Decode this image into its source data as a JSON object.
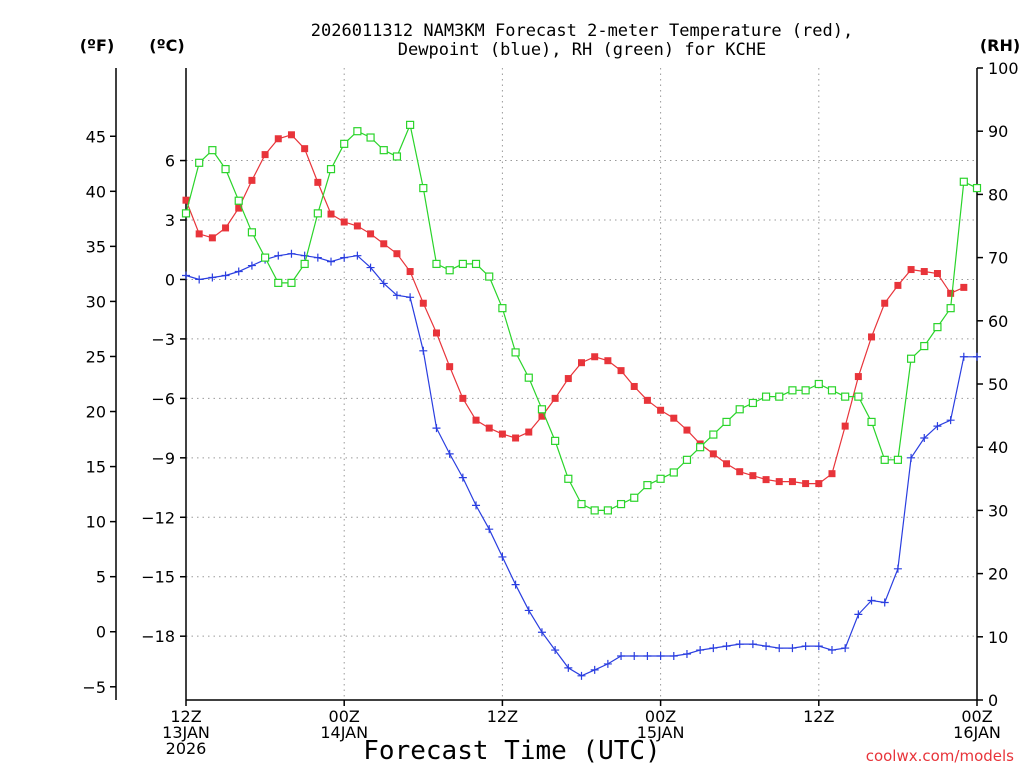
{
  "chart_data": {
    "type": "line",
    "title": [
      "2026011312 NAM3KM Forecast 2-meter Temperature (red),",
      "Dewpoint (blue), RH (green) for KCHE"
    ],
    "xlabel": "Forecast Time (UTC)",
    "credit": "coolwx.com/models",
    "axes": {
      "left_f": {
        "unit_label": "(ºF)",
        "ticks": [
          -5,
          0,
          5,
          10,
          15,
          20,
          25,
          30,
          35,
          40,
          45
        ],
        "range": [
          -6.2,
          51.2
        ]
      },
      "left_c": {
        "unit_label": "(ºC)",
        "ticks": [
          -18,
          -15,
          -12,
          -9,
          -6,
          -3,
          0,
          3,
          6
        ],
        "range": [
          -21.22,
          10.67
        ]
      },
      "right_rh": {
        "unit_label": "(RH)",
        "ticks": [
          0,
          10,
          20,
          30,
          40,
          50,
          60,
          70,
          80,
          90,
          100
        ],
        "range": [
          0,
          100
        ]
      }
    },
    "x_range_hours": [
      0,
      60
    ],
    "x_ticks": [
      {
        "hour": 0,
        "lines": [
          "12Z",
          "13JAN",
          "2026"
        ]
      },
      {
        "hour": 12,
        "lines": [
          "00Z",
          "14JAN"
        ]
      },
      {
        "hour": 24,
        "lines": [
          "12Z"
        ]
      },
      {
        "hour": 36,
        "lines": [
          "00Z",
          "15JAN"
        ]
      },
      {
        "hour": 48,
        "lines": [
          "12Z"
        ]
      },
      {
        "hour": 60,
        "lines": [
          "00Z",
          "16JAN"
        ]
      }
    ],
    "series": [
      {
        "name": "Temperature",
        "axis": "left_c",
        "color": "#e8343a",
        "marker": "filled-square",
        "points": [
          [
            0,
            4.0
          ],
          [
            1,
            2.3
          ],
          [
            2,
            2.1
          ],
          [
            3,
            2.6
          ],
          [
            4,
            3.6
          ],
          [
            5,
            5.0
          ],
          [
            6,
            6.3
          ],
          [
            7,
            7.1
          ],
          [
            8,
            7.3
          ],
          [
            9,
            6.6
          ],
          [
            10,
            4.9
          ],
          [
            11,
            3.3
          ],
          [
            12,
            2.9
          ],
          [
            13,
            2.7
          ],
          [
            14,
            2.3
          ],
          [
            15,
            1.8
          ],
          [
            16,
            1.3
          ],
          [
            17,
            0.4
          ],
          [
            18,
            -1.2
          ],
          [
            19,
            -2.7
          ],
          [
            20,
            -4.4
          ],
          [
            21,
            -6.0
          ],
          [
            22,
            -7.1
          ],
          [
            23,
            -7.5
          ],
          [
            24,
            -7.8
          ],
          [
            25,
            -8.0
          ],
          [
            26,
            -7.7
          ],
          [
            27,
            -6.9
          ],
          [
            28,
            -6.0
          ],
          [
            29,
            -5.0
          ],
          [
            30,
            -4.2
          ],
          [
            31,
            -3.9
          ],
          [
            32,
            -4.1
          ],
          [
            33,
            -4.6
          ],
          [
            34,
            -5.4
          ],
          [
            35,
            -6.1
          ],
          [
            36,
            -6.6
          ],
          [
            37,
            -7.0
          ],
          [
            38,
            -7.6
          ],
          [
            39,
            -8.3
          ],
          [
            40,
            -8.8
          ],
          [
            41,
            -9.3
          ],
          [
            42,
            -9.7
          ],
          [
            43,
            -9.9
          ],
          [
            44,
            -10.1
          ],
          [
            45,
            -10.2
          ],
          [
            46,
            -10.2
          ],
          [
            47,
            -10.3
          ],
          [
            48,
            -10.3
          ],
          [
            49,
            -9.8
          ],
          [
            50,
            -7.4
          ],
          [
            51,
            -4.9
          ],
          [
            52,
            -2.9
          ],
          [
            53,
            -1.2
          ],
          [
            54,
            -0.3
          ],
          [
            55,
            0.5
          ],
          [
            56,
            0.4
          ],
          [
            57,
            0.3
          ],
          [
            58,
            -0.7
          ],
          [
            59,
            -0.4
          ]
        ]
      },
      {
        "name": "Dewpoint",
        "axis": "left_c",
        "color": "#2a3ee0",
        "marker": "plus",
        "points": [
          [
            0,
            0.2
          ],
          [
            1,
            0.0
          ],
          [
            2,
            0.1
          ],
          [
            3,
            0.2
          ],
          [
            4,
            0.4
          ],
          [
            5,
            0.7
          ],
          [
            6,
            1.0
          ],
          [
            7,
            1.2
          ],
          [
            8,
            1.3
          ],
          [
            9,
            1.2
          ],
          [
            10,
            1.1
          ],
          [
            11,
            0.9
          ],
          [
            12,
            1.1
          ],
          [
            13,
            1.2
          ],
          [
            14,
            0.6
          ],
          [
            15,
            -0.2
          ],
          [
            16,
            -0.8
          ],
          [
            17,
            -0.9
          ],
          [
            18,
            -3.6
          ],
          [
            19,
            -7.5
          ],
          [
            20,
            -8.8
          ],
          [
            21,
            -10.0
          ],
          [
            22,
            -11.4
          ],
          [
            23,
            -12.6
          ],
          [
            24,
            -14.0
          ],
          [
            25,
            -15.4
          ],
          [
            26,
            -16.7
          ],
          [
            27,
            -17.8
          ],
          [
            28,
            -18.7
          ],
          [
            29,
            -19.6
          ],
          [
            30,
            -20.0
          ],
          [
            31,
            -19.7
          ],
          [
            32,
            -19.4
          ],
          [
            33,
            -19.0
          ],
          [
            34,
            -19.0
          ],
          [
            35,
            -19.0
          ],
          [
            36,
            -19.0
          ],
          [
            37,
            -19.0
          ],
          [
            38,
            -18.9
          ],
          [
            39,
            -18.7
          ],
          [
            40,
            -18.6
          ],
          [
            41,
            -18.5
          ],
          [
            42,
            -18.4
          ],
          [
            43,
            -18.4
          ],
          [
            44,
            -18.5
          ],
          [
            45,
            -18.6
          ],
          [
            46,
            -18.6
          ],
          [
            47,
            -18.5
          ],
          [
            48,
            -18.5
          ],
          [
            49,
            -18.7
          ],
          [
            50,
            -18.6
          ],
          [
            51,
            -16.9
          ],
          [
            52,
            -16.2
          ],
          [
            53,
            -16.3
          ],
          [
            54,
            -14.6
          ],
          [
            55,
            -9.0
          ],
          [
            56,
            -8.0
          ],
          [
            57,
            -7.4
          ],
          [
            58,
            -7.1
          ],
          [
            59,
            -3.9
          ],
          [
            60,
            -3.9
          ]
        ]
      },
      {
        "name": "RH",
        "axis": "right_rh",
        "color": "#2ad42a",
        "marker": "open-square",
        "points": [
          [
            0,
            77
          ],
          [
            1,
            85
          ],
          [
            2,
            87
          ],
          [
            3,
            84
          ],
          [
            4,
            79
          ],
          [
            5,
            74
          ],
          [
            6,
            70
          ],
          [
            7,
            66
          ],
          [
            8,
            66
          ],
          [
            9,
            69
          ],
          [
            10,
            77
          ],
          [
            11,
            84
          ],
          [
            12,
            88
          ],
          [
            13,
            90
          ],
          [
            14,
            89
          ],
          [
            15,
            87
          ],
          [
            16,
            86
          ],
          [
            17,
            91
          ],
          [
            18,
            81
          ],
          [
            19,
            69
          ],
          [
            20,
            68
          ],
          [
            21,
            69
          ],
          [
            22,
            69
          ],
          [
            23,
            67
          ],
          [
            24,
            62
          ],
          [
            25,
            55
          ],
          [
            26,
            51
          ],
          [
            27,
            46
          ],
          [
            28,
            41
          ],
          [
            29,
            35
          ],
          [
            30,
            31
          ],
          [
            31,
            30
          ],
          [
            32,
            30
          ],
          [
            33,
            31
          ],
          [
            34,
            32
          ],
          [
            35,
            34
          ],
          [
            36,
            35
          ],
          [
            37,
            36
          ],
          [
            38,
            38
          ],
          [
            39,
            40
          ],
          [
            40,
            42
          ],
          [
            41,
            44
          ],
          [
            42,
            46
          ],
          [
            43,
            47
          ],
          [
            44,
            48
          ],
          [
            45,
            48
          ],
          [
            46,
            49
          ],
          [
            47,
            49
          ],
          [
            48,
            50
          ],
          [
            49,
            49
          ],
          [
            50,
            48
          ],
          [
            51,
            48
          ],
          [
            52,
            44
          ],
          [
            53,
            38
          ],
          [
            54,
            38
          ],
          [
            55,
            54
          ],
          [
            56,
            56
          ],
          [
            57,
            59
          ],
          [
            58,
            62
          ],
          [
            59,
            82
          ],
          [
            60,
            81
          ]
        ]
      }
    ]
  }
}
